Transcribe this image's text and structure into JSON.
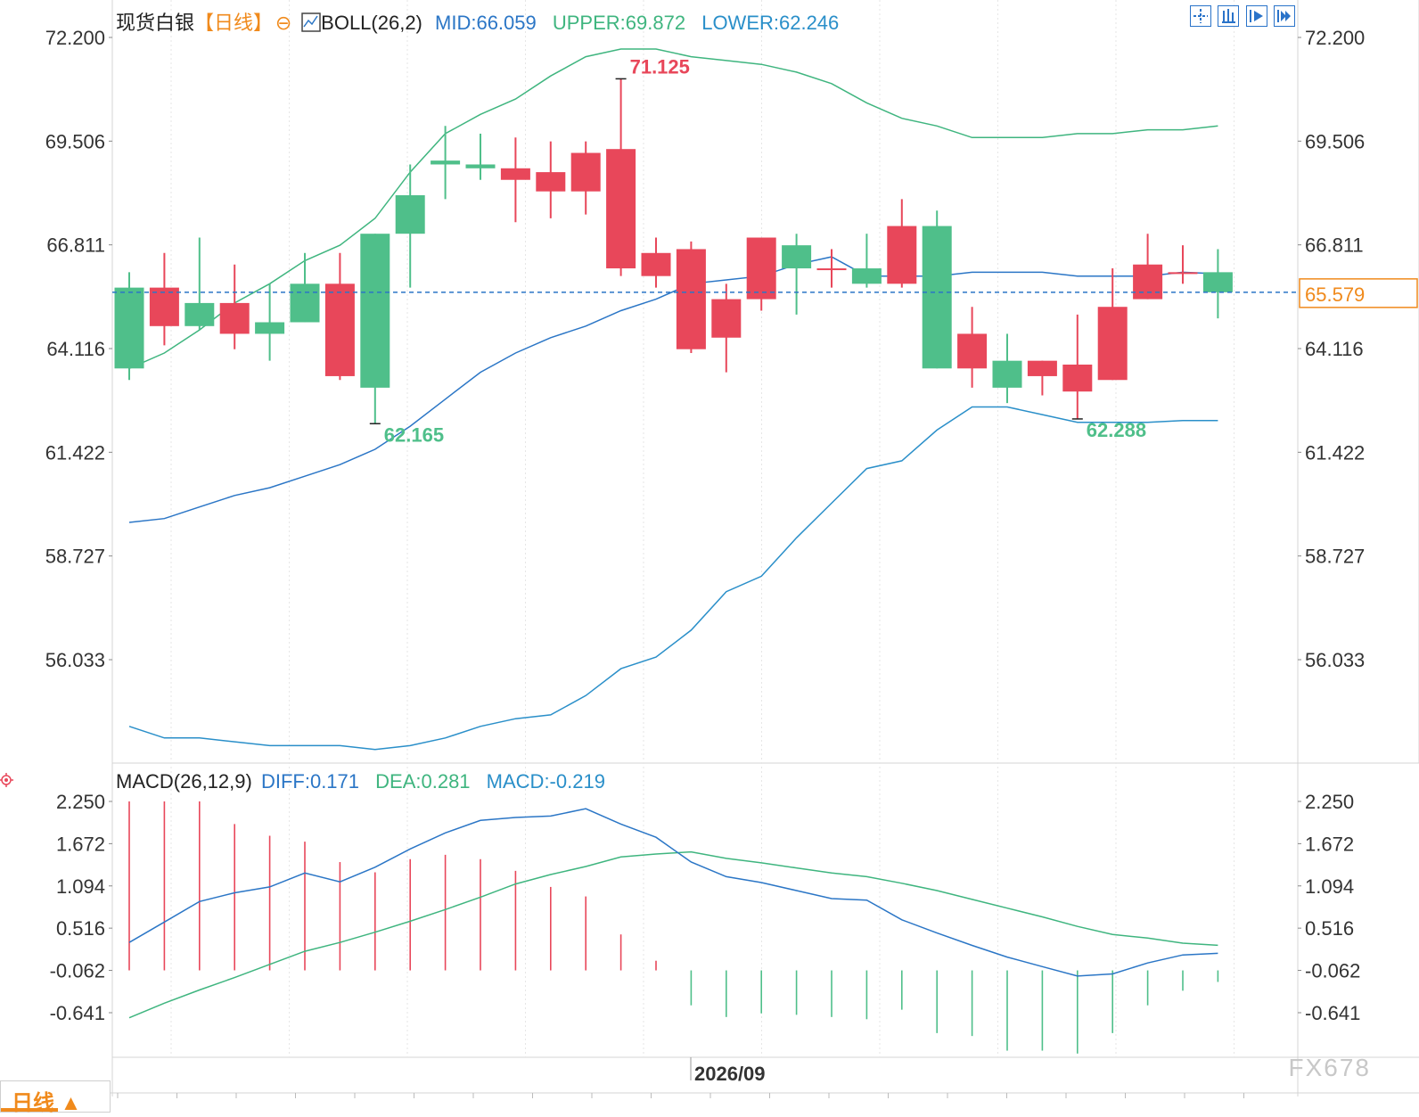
{
  "header": {
    "instrument": "现货白银",
    "period": "【日线】",
    "boll_label": "BOLL(26,2)",
    "mid": "MID:66.059",
    "upper": "UPPER:69.872",
    "lower": "LOWER:62.246"
  },
  "macd_header": {
    "label": "MACD(26,12,9)",
    "diff": "DIFF:0.171",
    "dea": "DEA:0.281",
    "macd": "MACD:-0.219"
  },
  "current_price": "65.579",
  "x_axis_label": "2026/09",
  "period_button": "日线 ▲",
  "watermark": "FX678",
  "colors": {
    "up": "#e8475a",
    "down": "#4fbf8a",
    "mid": "#2b76c6",
    "upper": "#3fb57f",
    "lower": "#2a8fc9",
    "dea": "#3fb57f",
    "diff": "#2b76c6",
    "price_line": "#2b76c6",
    "price_tag": "#f08a1c"
  },
  "chart_data": [
    {
      "type": "candlestick",
      "yticks": [
        "72.200",
        "69.506",
        "66.811",
        "64.116",
        "61.422",
        "58.727",
        "56.033"
      ],
      "ylim": [
        53.3,
        73.0
      ],
      "candles": [
        {
          "o": 65.7,
          "h": 66.1,
          "l": 63.3,
          "c": 63.6
        },
        {
          "o": 64.7,
          "h": 66.6,
          "l": 64.2,
          "c": 65.7
        },
        {
          "o": 65.3,
          "h": 67.0,
          "l": 64.6,
          "c": 64.7
        },
        {
          "o": 64.5,
          "h": 66.3,
          "l": 64.1,
          "c": 65.3
        },
        {
          "o": 64.8,
          "h": 65.8,
          "l": 63.8,
          "c": 64.5
        },
        {
          "o": 65.8,
          "h": 66.6,
          "l": 64.8,
          "c": 64.8
        },
        {
          "o": 63.4,
          "h": 66.6,
          "l": 63.3,
          "c": 65.8
        },
        {
          "o": 67.1,
          "h": 67.1,
          "l": 62.165,
          "c": 63.1
        },
        {
          "o": 68.1,
          "h": 68.9,
          "l": 65.7,
          "c": 67.1
        },
        {
          "o": 69.0,
          "h": 69.9,
          "l": 68.0,
          "c": 68.9
        },
        {
          "o": 68.9,
          "h": 69.7,
          "l": 68.5,
          "c": 68.8
        },
        {
          "o": 68.5,
          "h": 69.6,
          "l": 67.4,
          "c": 68.8
        },
        {
          "o": 68.2,
          "h": 69.5,
          "l": 67.5,
          "c": 68.7
        },
        {
          "o": 68.2,
          "h": 69.5,
          "l": 67.6,
          "c": 69.2
        },
        {
          "o": 66.2,
          "h": 71.125,
          "l": 66.0,
          "c": 69.3
        },
        {
          "o": 66.0,
          "h": 67.0,
          "l": 65.7,
          "c": 66.6
        },
        {
          "o": 64.1,
          "h": 66.9,
          "l": 64.0,
          "c": 66.7
        },
        {
          "o": 64.4,
          "h": 65.8,
          "l": 63.5,
          "c": 65.4
        },
        {
          "o": 65.4,
          "h": 67.0,
          "l": 65.1,
          "c": 67.0
        },
        {
          "o": 66.8,
          "h": 67.1,
          "l": 65.0,
          "c": 66.2
        },
        {
          "o": 66.2,
          "h": 66.7,
          "l": 65.7,
          "c": 66.2
        },
        {
          "o": 66.2,
          "h": 67.1,
          "l": 65.7,
          "c": 65.8
        },
        {
          "o": 65.8,
          "h": 68.0,
          "l": 65.7,
          "c": 67.3
        },
        {
          "o": 67.3,
          "h": 67.7,
          "l": 63.6,
          "c": 63.6
        },
        {
          "o": 63.6,
          "h": 65.2,
          "l": 63.1,
          "c": 64.5
        },
        {
          "o": 63.8,
          "h": 64.5,
          "l": 62.7,
          "c": 63.1
        },
        {
          "o": 63.4,
          "h": 63.8,
          "l": 62.9,
          "c": 63.8
        },
        {
          "o": 63.0,
          "h": 65.0,
          "l": 62.288,
          "c": 63.7
        },
        {
          "o": 63.3,
          "h": 66.2,
          "l": 63.3,
          "c": 65.2
        },
        {
          "o": 65.4,
          "h": 67.1,
          "l": 65.4,
          "c": 66.3
        },
        {
          "o": 66.1,
          "h": 66.8,
          "l": 65.8,
          "c": 66.1
        },
        {
          "o": 66.1,
          "h": 66.7,
          "l": 64.9,
          "c": 65.579
        }
      ],
      "annotations": [
        {
          "text": "71.125",
          "candle": 14,
          "value": 71.125,
          "color": "#e8475a"
        },
        {
          "text": "62.165",
          "candle": 7,
          "value": 62.165,
          "color": "#4fbf8a"
        },
        {
          "text": "62.288",
          "candle": 27,
          "value": 62.288,
          "color": "#4fbf8a"
        }
      ],
      "boll": {
        "upper": [
          63.6,
          64.0,
          64.6,
          65.3,
          65.8,
          66.4,
          66.8,
          67.5,
          68.7,
          69.7,
          70.2,
          70.6,
          71.2,
          71.7,
          71.9,
          71.9,
          71.7,
          71.6,
          71.5,
          71.3,
          71.0,
          70.5,
          70.1,
          69.9,
          69.6,
          69.6,
          69.6,
          69.7,
          69.7,
          69.8,
          69.8,
          69.9
        ],
        "mid": [
          59.6,
          59.7,
          60.0,
          60.3,
          60.5,
          60.8,
          61.1,
          61.5,
          62.1,
          62.8,
          63.5,
          64.0,
          64.4,
          64.7,
          65.1,
          65.4,
          65.8,
          65.9,
          66.0,
          66.3,
          66.5,
          66.0,
          66.0,
          66.0,
          66.1,
          66.1,
          66.1,
          66.0,
          66.0,
          66.0,
          66.1,
          66.059
        ],
        "lower": [
          54.3,
          54.0,
          54.0,
          53.9,
          53.8,
          53.8,
          53.8,
          53.7,
          53.8,
          54.0,
          54.3,
          54.5,
          54.6,
          55.1,
          55.8,
          56.1,
          56.8,
          57.8,
          58.2,
          59.2,
          60.1,
          61.0,
          61.2,
          62.0,
          62.6,
          62.6,
          62.4,
          62.2,
          62.2,
          62.2,
          62.246,
          62.246
        ]
      }
    },
    {
      "type": "macd",
      "yticks": [
        "2.250",
        "1.672",
        "1.094",
        "0.516",
        "-0.062",
        "-0.641"
      ],
      "ylim": [
        -1.25,
        2.4
      ],
      "hist": [
        2.25,
        2.25,
        2.25,
        1.94,
        1.78,
        1.7,
        1.42,
        1.28,
        1.46,
        1.52,
        1.46,
        1.3,
        1.08,
        0.95,
        0.43,
        0.07,
        -0.54,
        -0.7,
        -0.65,
        -0.67,
        -0.7,
        -0.73,
        -0.6,
        -0.92,
        -0.96,
        -1.16,
        -1.16,
        -1.2,
        -0.92,
        -0.54,
        -0.34,
        -0.22
      ],
      "diff": [
        0.32,
        0.6,
        0.88,
        1.0,
        1.08,
        1.27,
        1.15,
        1.35,
        1.6,
        1.82,
        1.99,
        2.03,
        2.05,
        2.15,
        1.94,
        1.76,
        1.42,
        1.22,
        1.14,
        1.03,
        0.92,
        0.9,
        0.63,
        0.45,
        0.28,
        0.12,
        -0.01,
        -0.14,
        -0.11,
        0.04,
        0.15,
        0.171
      ],
      "dea": [
        -0.71,
        -0.51,
        -0.33,
        -0.16,
        0.02,
        0.2,
        0.32,
        0.46,
        0.61,
        0.77,
        0.94,
        1.12,
        1.25,
        1.36,
        1.49,
        1.53,
        1.56,
        1.47,
        1.41,
        1.34,
        1.27,
        1.22,
        1.13,
        1.03,
        0.91,
        0.79,
        0.67,
        0.54,
        0.43,
        0.38,
        0.31,
        0.281
      ]
    }
  ]
}
